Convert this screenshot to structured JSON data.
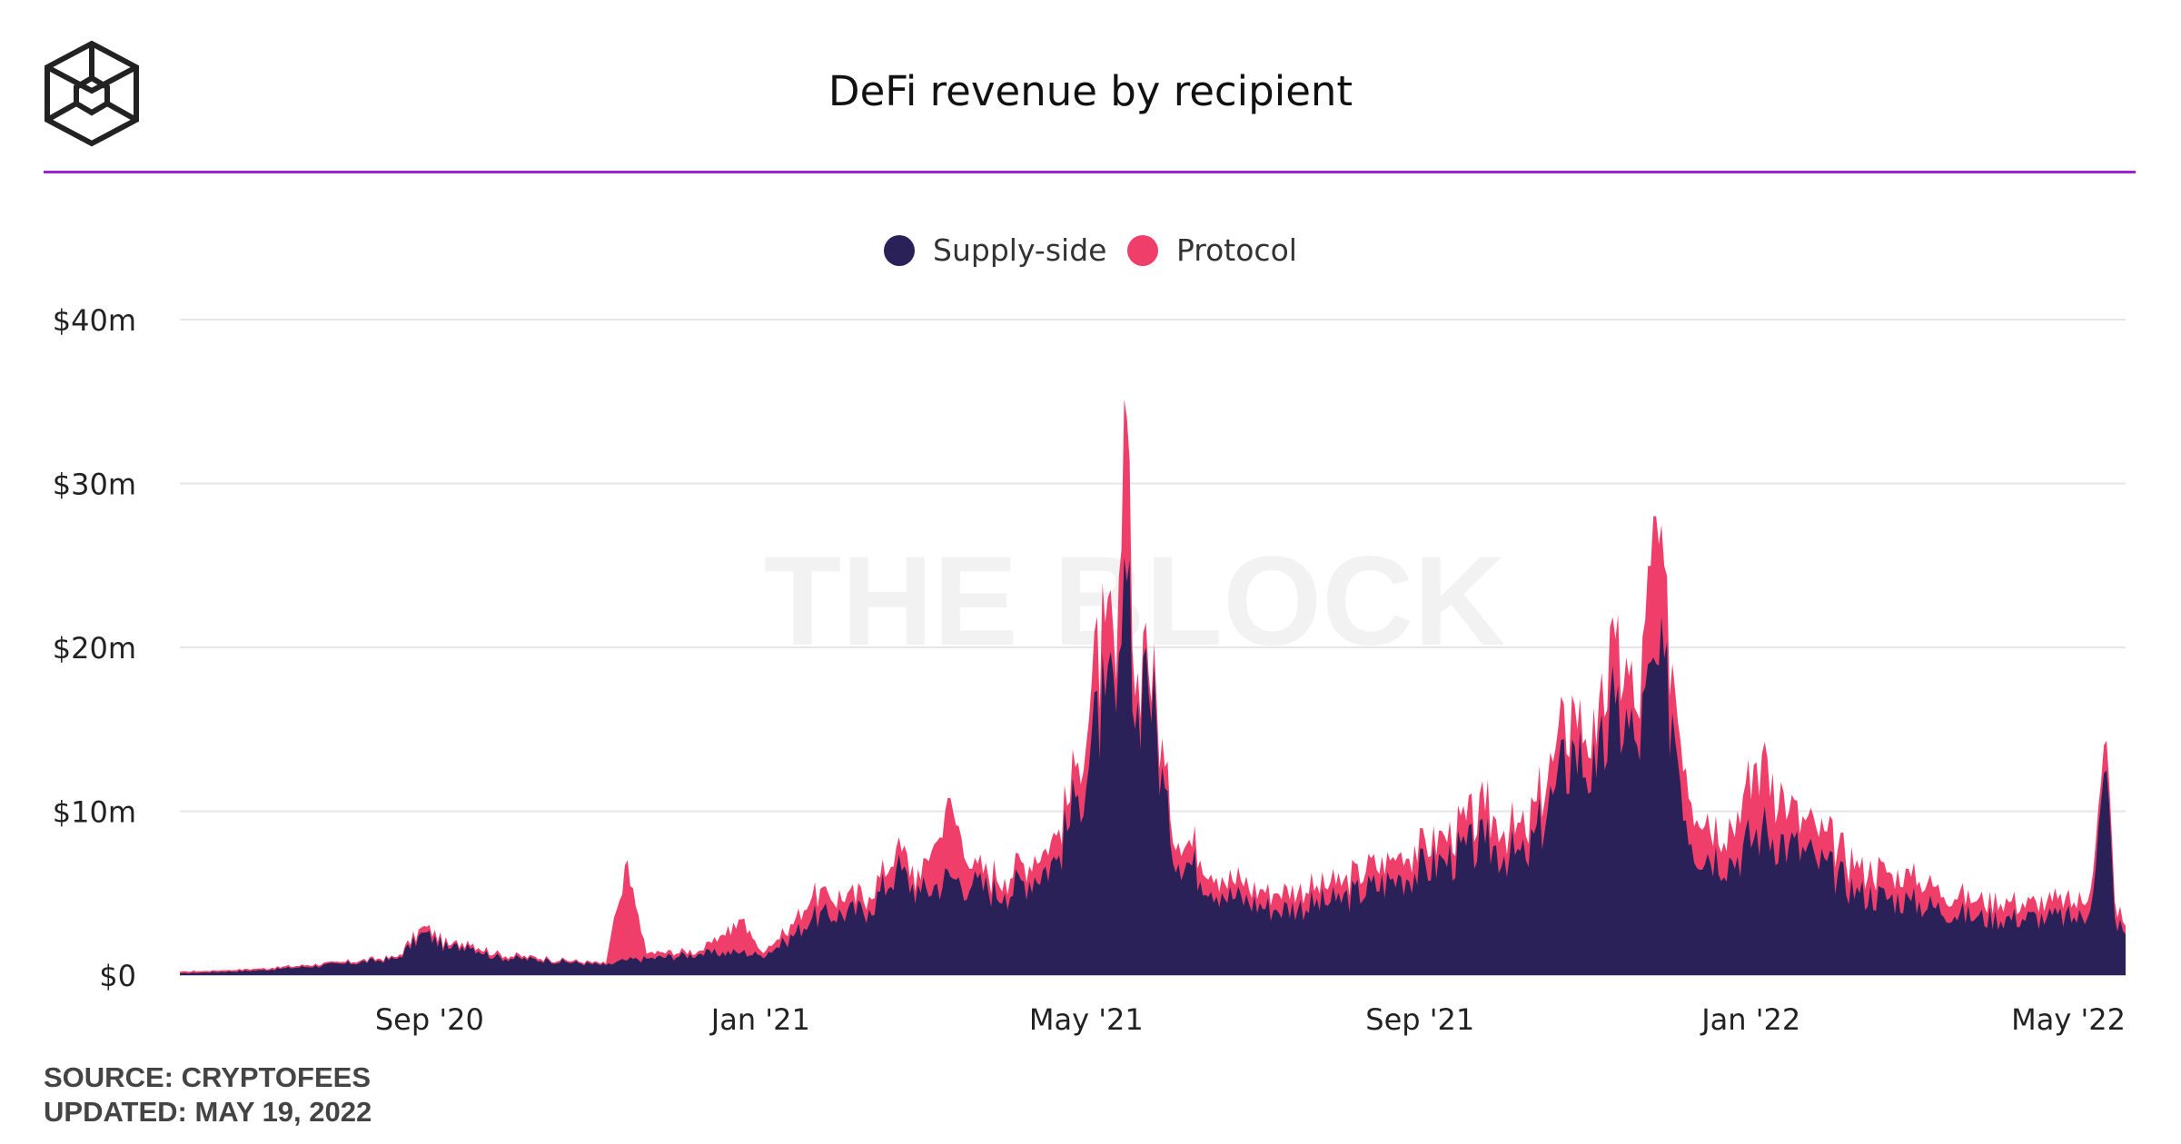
{
  "header": {
    "title": "DeFi revenue by recipient",
    "logo_alt": "The Block logo"
  },
  "watermark": "THE BLOCK",
  "footer": {
    "source": "SOURCE: CRYPTOFEES",
    "updated": "UPDATED: MAY 19, 2022"
  },
  "colors": {
    "supply_side": "#2a2158",
    "protocol": "#f03e6a",
    "rule": "#a020d8",
    "grid": "#e6e6e6"
  },
  "chart_data": {
    "type": "area",
    "stacked": true,
    "title": "DeFi revenue by recipient",
    "unit": "$m",
    "legend": [
      "Supply-side",
      "Protocol"
    ],
    "legend_position": "top-center",
    "ylim": [
      0,
      40
    ],
    "yticks": [
      0,
      10,
      20,
      30,
      40
    ],
    "ytick_labels": [
      "$0",
      "$10m",
      "$20m",
      "$30m",
      "$40m"
    ],
    "xlim": [
      "2020-06-01",
      "2022-05-19"
    ],
    "xticks": [
      "2020-09-01",
      "2021-01-01",
      "2021-05-01",
      "2021-09-01",
      "2022-01-01",
      "2022-05-01"
    ],
    "xtick_labels": [
      "Sep '20",
      "Jan '21",
      "May '21",
      "Sep '21",
      "Jan '22",
      "May '22"
    ],
    "grid": true,
    "series": [
      {
        "name": "Supply-side",
        "points": [
          [
            "2020-06-01",
            0.1
          ],
          [
            "2020-07-01",
            0.3
          ],
          [
            "2020-08-01",
            0.7
          ],
          [
            "2020-08-20",
            1.0
          ],
          [
            "2020-08-30",
            2.6
          ],
          [
            "2020-09-08",
            1.6
          ],
          [
            "2020-09-15",
            1.9
          ],
          [
            "2020-09-25",
            1.1
          ],
          [
            "2020-10-15",
            0.9
          ],
          [
            "2020-11-05",
            0.6
          ],
          [
            "2020-11-12",
            0.9
          ],
          [
            "2020-11-20",
            1.0
          ],
          [
            "2020-12-10",
            1.3
          ],
          [
            "2020-12-25",
            1.4
          ],
          [
            "2021-01-01",
            1.2
          ],
          [
            "2021-01-10",
            2.0
          ],
          [
            "2021-01-20",
            3.5
          ],
          [
            "2021-02-10",
            4.0
          ],
          [
            "2021-02-20",
            6.5
          ],
          [
            "2021-03-01",
            5.0
          ],
          [
            "2021-03-12",
            6.0
          ],
          [
            "2021-03-20",
            5.5
          ],
          [
            "2021-04-01",
            5.0
          ],
          [
            "2021-04-20",
            7.0
          ],
          [
            "2021-04-28",
            11.0
          ],
          [
            "2021-05-08",
            17.0
          ],
          [
            "2021-05-12",
            16.0
          ],
          [
            "2021-05-16",
            24.0
          ],
          [
            "2021-05-19",
            15.0
          ],
          [
            "2021-05-23",
            20.0
          ],
          [
            "2021-06-01",
            8.0
          ],
          [
            "2021-06-20",
            5.0
          ],
          [
            "2021-07-10",
            4.0
          ],
          [
            "2021-08-01",
            4.5
          ],
          [
            "2021-08-25",
            6.0
          ],
          [
            "2021-09-10",
            7.0
          ],
          [
            "2021-09-25",
            8.0
          ],
          [
            "2021-10-10",
            7.0
          ],
          [
            "2021-10-20",
            11.0
          ],
          [
            "2021-10-28",
            14.0
          ],
          [
            "2021-11-05",
            12.0
          ],
          [
            "2021-11-12",
            16.5
          ],
          [
            "2021-11-20",
            14.0
          ],
          [
            "2021-11-27",
            19.0
          ],
          [
            "2021-12-03",
            16.0
          ],
          [
            "2021-12-10",
            8.0
          ],
          [
            "2021-12-25",
            7.0
          ],
          [
            "2022-01-05",
            9.0
          ],
          [
            "2022-01-15",
            8.0
          ],
          [
            "2022-01-25",
            7.0
          ],
          [
            "2022-02-10",
            5.0
          ],
          [
            "2022-03-01",
            4.5
          ],
          [
            "2022-03-25",
            3.5
          ],
          [
            "2022-04-20",
            3.5
          ],
          [
            "2022-05-05",
            3.5
          ],
          [
            "2022-05-12",
            12.5
          ],
          [
            "2022-05-15",
            3.5
          ],
          [
            "2022-05-19",
            2.5
          ]
        ]
      },
      {
        "name": "Protocol",
        "points": [
          [
            "2020-06-01",
            0.1
          ],
          [
            "2020-07-01",
            0.1
          ],
          [
            "2020-08-01",
            0.1
          ],
          [
            "2020-08-20",
            0.1
          ],
          [
            "2020-08-30",
            0.4
          ],
          [
            "2020-09-08",
            0.2
          ],
          [
            "2020-09-15",
            0.2
          ],
          [
            "2020-09-25",
            0.2
          ],
          [
            "2020-10-15",
            0.1
          ],
          [
            "2020-11-05",
            0.1
          ],
          [
            "2020-11-12",
            5.8
          ],
          [
            "2020-11-20",
            0.3
          ],
          [
            "2020-12-10",
            0.2
          ],
          [
            "2020-12-25",
            2.0
          ],
          [
            "2021-01-01",
            0.3
          ],
          [
            "2021-01-10",
            0.5
          ],
          [
            "2021-01-20",
            1.3
          ],
          [
            "2021-02-10",
            0.8
          ],
          [
            "2021-02-20",
            1.3
          ],
          [
            "2021-03-01",
            0.8
          ],
          [
            "2021-03-12",
            4.8
          ],
          [
            "2021-03-20",
            1.0
          ],
          [
            "2021-04-01",
            0.9
          ],
          [
            "2021-04-20",
            1.5
          ],
          [
            "2021-04-28",
            2.0
          ],
          [
            "2021-05-08",
            4.5
          ],
          [
            "2021-05-12",
            2.0
          ],
          [
            "2021-05-16",
            10.0
          ],
          [
            "2021-05-19",
            2.0
          ],
          [
            "2021-05-23",
            1.5
          ],
          [
            "2021-06-01",
            1.5
          ],
          [
            "2021-06-20",
            1.0
          ],
          [
            "2021-07-10",
            1.0
          ],
          [
            "2021-08-01",
            1.0
          ],
          [
            "2021-08-25",
            1.5
          ],
          [
            "2021-09-10",
            1.5
          ],
          [
            "2021-09-25",
            2.0
          ],
          [
            "2021-10-10",
            1.5
          ],
          [
            "2021-10-20",
            2.0
          ],
          [
            "2021-10-28",
            2.5
          ],
          [
            "2021-11-05",
            2.0
          ],
          [
            "2021-11-12",
            4.0
          ],
          [
            "2021-11-20",
            2.0
          ],
          [
            "2021-11-27",
            9.0
          ],
          [
            "2021-12-03",
            3.0
          ],
          [
            "2021-12-10",
            2.5
          ],
          [
            "2021-12-25",
            2.0
          ],
          [
            "2022-01-05",
            4.5
          ],
          [
            "2022-01-15",
            2.0
          ],
          [
            "2022-01-25",
            2.0
          ],
          [
            "2022-02-10",
            1.5
          ],
          [
            "2022-03-01",
            1.5
          ],
          [
            "2022-03-25",
            1.0
          ],
          [
            "2022-04-20",
            1.0
          ],
          [
            "2022-05-05",
            1.0
          ],
          [
            "2022-05-12",
            1.8
          ],
          [
            "2022-05-15",
            1.0
          ],
          [
            "2022-05-19",
            0.5
          ]
        ]
      }
    ]
  }
}
